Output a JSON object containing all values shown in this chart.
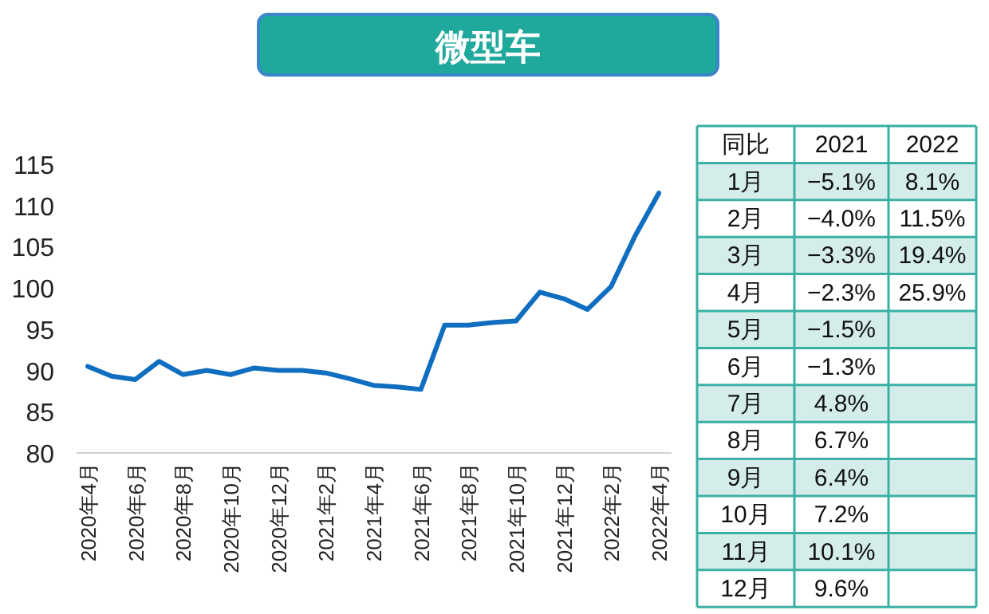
{
  "chart_data": [
    {
      "type": "line",
      "title": "微型车",
      "categories": [
        "2020年4月",
        null,
        "2020年6月",
        null,
        "2020年8月",
        null,
        "2020年10月",
        null,
        "2020年12月",
        null,
        "2021年2月",
        null,
        "2021年4月",
        null,
        "2021年6月",
        null,
        "2021年8月",
        null,
        "2021年10月",
        null,
        "2021年12月",
        null,
        "2022年2月",
        null,
        "2022年4月"
      ],
      "values": [
        90.5,
        89.3,
        88.9,
        91.1,
        89.5,
        90.0,
        89.5,
        90.3,
        90.0,
        90.0,
        89.7,
        89.0,
        88.2,
        88.0,
        87.7,
        95.5,
        95.5,
        95.8,
        96.0,
        99.5,
        98.7,
        97.4,
        100.2,
        106.3,
        111.5
      ],
      "color": "#0f6ec0",
      "ylim": [
        80,
        115
      ],
      "yticks": [
        80,
        85,
        90,
        95,
        100,
        105,
        110,
        115
      ]
    },
    {
      "type": "heatmap",
      "title": "同比",
      "categories": [
        "2021",
        "2022"
      ],
      "y_categories": [
        "1月",
        "2月",
        "3月",
        "4月",
        "5月",
        "6月",
        "7月",
        "8月",
        "9月",
        "10月",
        "11月",
        "12月"
      ],
      "cells": [
        [
          -5.1,
          8.1
        ],
        [
          -4.0,
          11.5
        ],
        [
          -3.3,
          19.4
        ],
        [
          -2.3,
          25.9
        ],
        [
          -1.5,
          null
        ],
        [
          -1.3,
          null
        ],
        [
          4.8,
          null
        ],
        [
          6.7,
          null
        ],
        [
          6.4,
          null
        ],
        [
          7.2,
          null
        ],
        [
          10.1,
          null
        ],
        [
          9.6,
          null
        ]
      ],
      "cell_labels": [
        [
          "−5.1%",
          "8.1%"
        ],
        [
          "−4.0%",
          "11.5%"
        ],
        [
          "−3.3%",
          "19.4%"
        ],
        [
          "−2.3%",
          "25.9%"
        ],
        [
          "−1.5%",
          null
        ],
        [
          "−1.3%",
          null
        ],
        [
          "4.8%",
          null
        ],
        [
          "6.7%",
          null
        ],
        [
          "6.4%",
          null
        ],
        [
          "7.2%",
          null
        ],
        [
          "10.1%",
          null
        ],
        [
          "9.6%",
          null
        ]
      ]
    }
  ]
}
